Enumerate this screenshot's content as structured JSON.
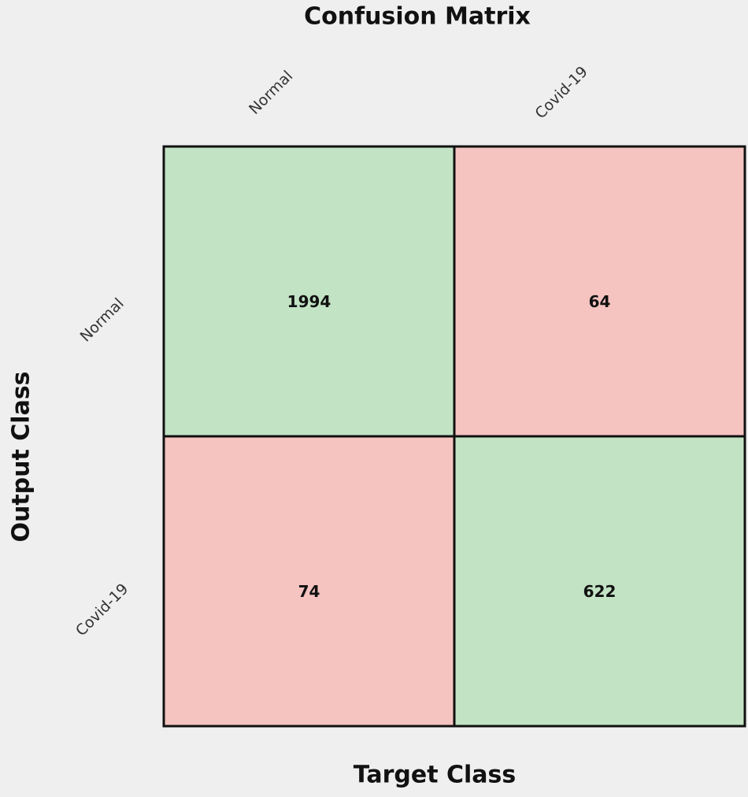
{
  "chart_data": {
    "type": "confusion_matrix",
    "title": "Confusion Matrix",
    "x_label": "Target Class",
    "y_label": "Output Class",
    "x_categories": [
      "Normal",
      "Covid-19"
    ],
    "y_categories": [
      "Normal",
      "Covid-19"
    ],
    "values": [
      [
        1994,
        64
      ],
      [
        74,
        622
      ]
    ],
    "diagonal_color": "#c2e3c4",
    "off_diagonal_color": "#f5c4c0"
  }
}
